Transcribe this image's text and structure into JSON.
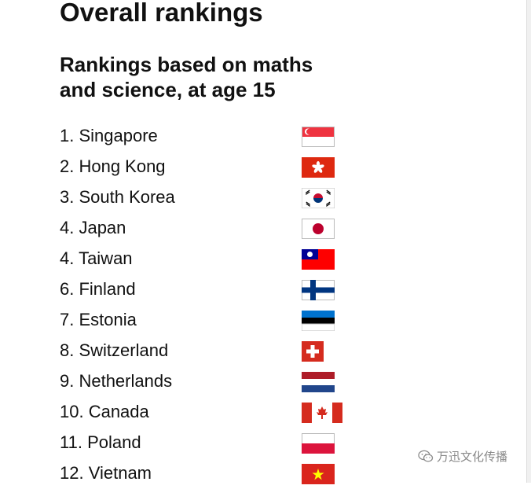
{
  "header": {
    "title": "Overall rankings",
    "subtitle_line1": "Rankings based on maths",
    "subtitle_line2": "and science, at age 15"
  },
  "rankings": [
    {
      "label": "1. Singapore",
      "flag": "singapore-flag"
    },
    {
      "label": "2. Hong Kong",
      "flag": "hong-kong-flag"
    },
    {
      "label": "3. South Korea",
      "flag": "south-korea-flag"
    },
    {
      "label": "4. Japan",
      "flag": "japan-flag"
    },
    {
      "label": "4. Taiwan",
      "flag": "taiwan-flag"
    },
    {
      "label": "6. Finland",
      "flag": "finland-flag"
    },
    {
      "label": "7. Estonia",
      "flag": "estonia-flag"
    },
    {
      "label": "8. Switzerland",
      "flag": "switzerland-flag"
    },
    {
      "label": "9. Netherlands",
      "flag": "netherlands-flag"
    },
    {
      "label": "10. Canada",
      "flag": "canada-flag"
    },
    {
      "label": "11. Poland",
      "flag": "poland-flag"
    },
    {
      "label": "12. Vietnam",
      "flag": "vietnam-flag"
    }
  ],
  "watermark": {
    "text": "万迅文化传播",
    "icon": "wechat-icon"
  },
  "colors": {
    "text": "#111111",
    "red": "#d52b1e",
    "blue": "#003580",
    "watermark": "#8a8a8a"
  }
}
